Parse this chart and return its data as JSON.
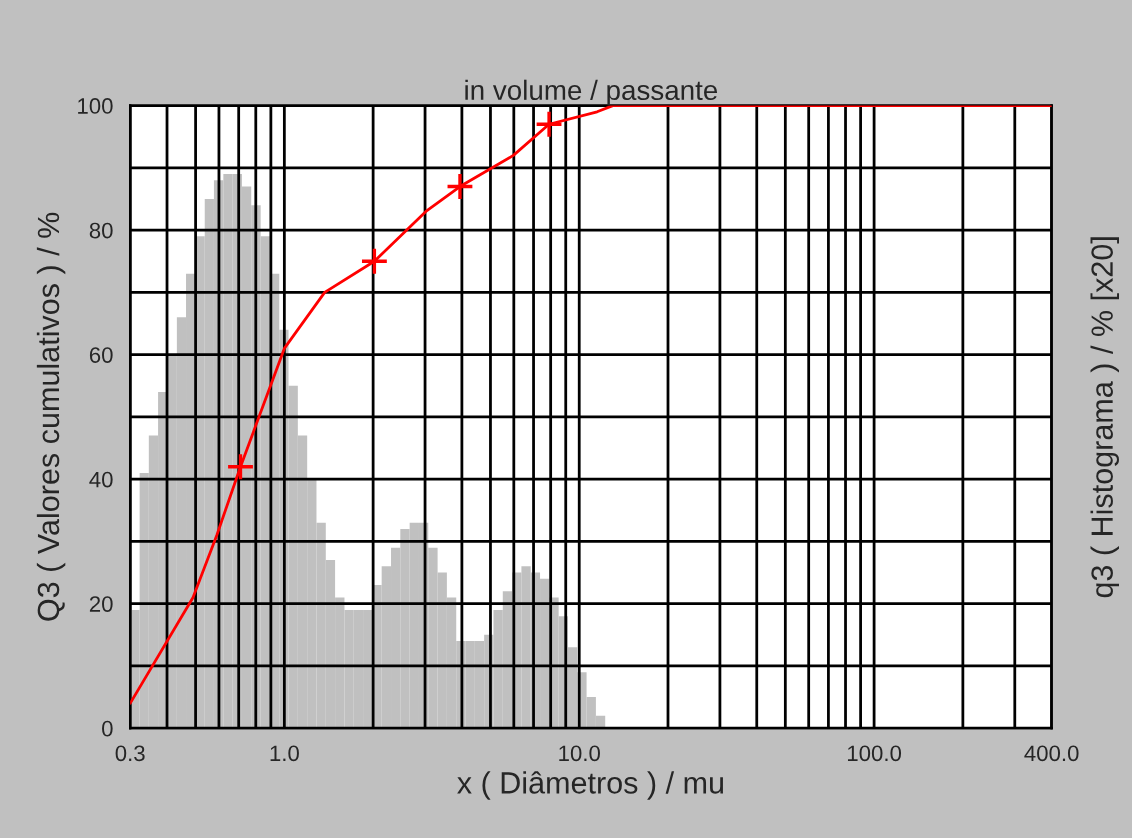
{
  "chart_data": {
    "type": "histogram",
    "title": "in volume / passante",
    "xlabel": "x ( Diâmetros ) / mu",
    "ylabel": "Q3 ( Valores cumulativos ) / %",
    "y2label": "q3 ( Histograma ) / % [x20]",
    "log": "x",
    "xlim": [
      0.3,
      400
    ],
    "xticks": [
      {
        "value": 0.3,
        "label": "0.3"
      },
      {
        "value": 0.4,
        "label": null
      },
      {
        "value": 0.5,
        "label": null
      },
      {
        "value": 0.6,
        "label": null
      },
      {
        "value": 0.7,
        "label": null
      },
      {
        "value": 0.8,
        "label": null
      },
      {
        "value": 0.9,
        "label": null
      },
      {
        "value": 1,
        "label": "1.0"
      },
      {
        "value": 2,
        "label": null
      },
      {
        "value": 3,
        "label": null
      },
      {
        "value": 4,
        "label": null
      },
      {
        "value": 5,
        "label": null
      },
      {
        "value": 6,
        "label": null
      },
      {
        "value": 7,
        "label": null
      },
      {
        "value": 8,
        "label": null
      },
      {
        "value": 9,
        "label": null
      },
      {
        "value": 10,
        "label": "10.0"
      },
      {
        "value": 20,
        "label": null
      },
      {
        "value": 30,
        "label": null
      },
      {
        "value": 40,
        "label": null
      },
      {
        "value": 50,
        "label": null
      },
      {
        "value": 60,
        "label": null
      },
      {
        "value": 70,
        "label": null
      },
      {
        "value": 80,
        "label": null
      },
      {
        "value": 90,
        "label": null
      },
      {
        "value": 100,
        "label": "100.0"
      },
      {
        "value": 200,
        "label": null
      },
      {
        "value": 300,
        "label": null
      },
      {
        "value": 400,
        "label": "400.0"
      }
    ],
    "ylim": [
      0,
      100
    ],
    "yticks": [
      0,
      {
        "value": 10,
        "label": null
      },
      20,
      {
        "value": 30,
        "label": null
      },
      40,
      {
        "value": 50,
        "label": null
      },
      60,
      {
        "value": 70,
        "label": null
      },
      80,
      {
        "value": 90,
        "label": null
      },
      100
    ],
    "grid": true,
    "legend": false,
    "series": [
      {
        "color": "#c0c0c0",
        "bins": [
          0.3,
          0.323,
          0.347,
          0.373,
          0.401,
          0.432,
          0.464,
          0.499,
          0.537,
          0.577,
          0.621,
          0.668,
          0.718,
          0.772,
          0.831,
          0.893,
          0.961,
          1.033,
          1.111,
          1.195,
          1.285,
          1.382,
          1.486,
          1.599,
          1.719,
          1.849,
          1.988,
          2.138,
          2.3,
          2.473,
          2.66,
          2.861,
          3.076,
          3.309,
          3.558,
          3.827,
          4.116,
          4.426,
          4.76,
          5.119,
          5.505,
          5.92,
          6.367,
          6.847,
          7.364,
          7.92,
          8.516,
          9.159,
          9.851,
          10.59,
          11.39,
          12.25
        ],
        "values": [
          19,
          41,
          47,
          54,
          60,
          66,
          73,
          79,
          85,
          88,
          89,
          89,
          87,
          84,
          79,
          73,
          64,
          55,
          47,
          40,
          33,
          27,
          21,
          19,
          19,
          19,
          23,
          26,
          29,
          32,
          33,
          33,
          29,
          25,
          21,
          14,
          14,
          14,
          15,
          19,
          22,
          25,
          26,
          25,
          24,
          21,
          18,
          13,
          9,
          5,
          2
        ]
      },
      {
        "type": "line",
        "color": "#ff0000",
        "marker": "none",
        "x": [
          0.3,
          0.49,
          0.59,
          0.71,
          1.0,
          1.37,
          2.02,
          3.02,
          3.94,
          5.98,
          7.9,
          11.5,
          13,
          400
        ],
        "values": [
          4,
          21,
          31,
          42,
          61,
          70,
          75,
          83,
          87,
          92,
          97,
          99,
          100,
          100
        ]
      },
      {
        "type": "scatter",
        "color": "#ff0000",
        "marker": "cross",
        "x": [
          0.71,
          2.02,
          3.94,
          7.9
        ],
        "values": [
          42,
          75,
          87,
          97
        ]
      }
    ]
  }
}
